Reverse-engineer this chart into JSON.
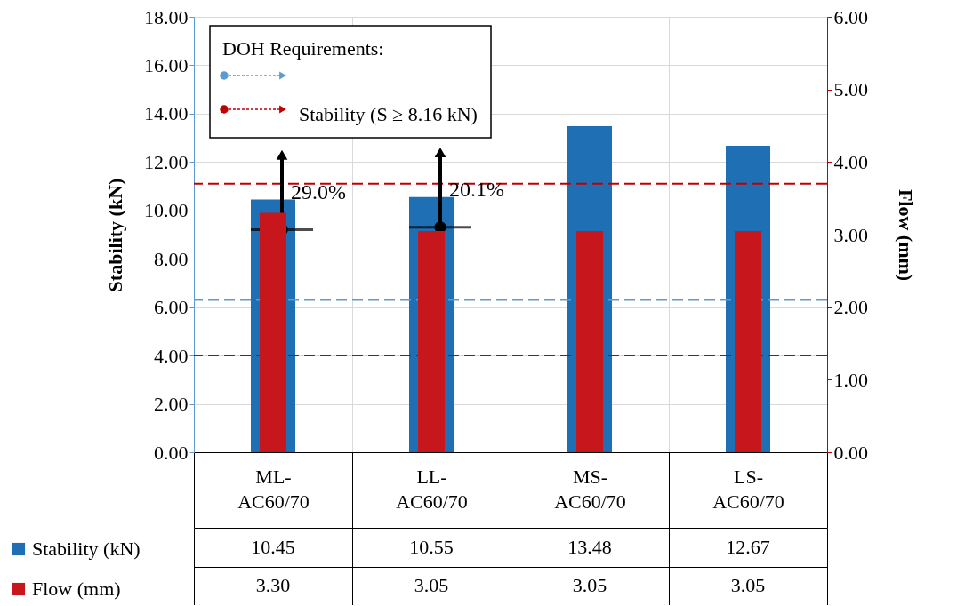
{
  "chart_data": {
    "type": "bar",
    "categories": [
      "ML-AC60/70",
      "LL-AC60/70",
      "MS-AC60/70",
      "LS-AC60/70"
    ],
    "series": [
      {
        "name": "Stability (kN)",
        "color": "#1f6fb4",
        "values": [
          10.45,
          10.55,
          13.48,
          12.67
        ],
        "value_labels": [
          "10.45",
          "10.55",
          "13.48",
          "12.67"
        ]
      },
      {
        "name": "Flow (mm)",
        "color": "#c8161d",
        "values": [
          3.3,
          3.05,
          3.05,
          3.05
        ],
        "value_labels": [
          "3.30",
          "3.05",
          "3.05",
          "3.05"
        ],
        "axis": "y2"
      }
    ],
    "ylabel": "Stability (kN)",
    "y2label": "Flow (mm)",
    "ylim": [
      0,
      18
    ],
    "yticks": [
      {
        "value": 0,
        "label": "0.00"
      },
      {
        "value": 2,
        "label": "2.00"
      },
      {
        "value": 4,
        "label": "4.00"
      },
      {
        "value": 6,
        "label": "6.00"
      },
      {
        "value": 8,
        "label": "8.00"
      },
      {
        "value": 10,
        "label": "10.00"
      },
      {
        "value": 12,
        "label": "12.00"
      },
      {
        "value": 14,
        "label": "14.00"
      },
      {
        "value": 16,
        "label": "16.00"
      },
      {
        "value": 18,
        "label": "18.00"
      }
    ],
    "y2lim": [
      0,
      6
    ],
    "y2ticks": [
      {
        "value": 0,
        "label": "0.00"
      },
      {
        "value": 1,
        "label": "1.00"
      },
      {
        "value": 2,
        "label": "2.00"
      },
      {
        "value": 3,
        "label": "3.00"
      },
      {
        "value": 4,
        "label": "4.00"
      },
      {
        "value": 5,
        "label": "5.00"
      },
      {
        "value": 6,
        "label": "6.00"
      }
    ],
    "legend_title": "DOH Requirements:",
    "ref_lines": [
      {
        "axis": "y",
        "value": 6.3,
        "label": null,
        "color": "#5b9bd5",
        "line_style": "dashed"
      },
      {
        "axis": "y",
        "value": 11.1,
        "label": "Stability (S ≥ 8.16 kN)",
        "color": "#c00000",
        "line_style": "dashed"
      },
      {
        "axis": "y",
        "value": 4.0,
        "label": null,
        "color": "#c00000",
        "line_style": "dashed"
      }
    ],
    "annotations": [
      {
        "text": "29.0%",
        "x": "ML-AC60/70",
        "y": 10.3
      },
      {
        "text": "20.1%",
        "x": "LL-AC60/70",
        "y": 10.4
      }
    ],
    "grid": true,
    "legend": "bottom left"
  }
}
